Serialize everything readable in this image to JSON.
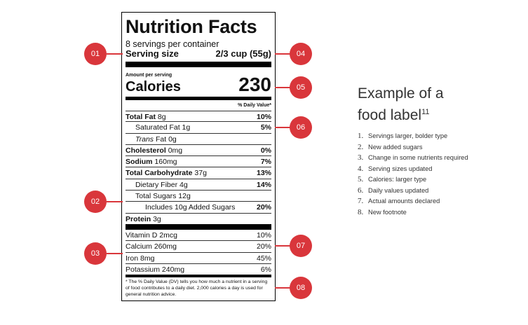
{
  "label": {
    "title": "Nutrition Facts",
    "servings": "8 servings per container",
    "serving_size_label": "Serving size",
    "serving_size_value": "2/3 cup (55g)",
    "amount_per_serving": "Amount per serving",
    "calories_label": "Calories",
    "calories_value": "230",
    "dv_header": "% Daily Value*",
    "nutrients": [
      {
        "name": "Total Fat",
        "amount": "8g",
        "pct": "10%"
      },
      {
        "name": "Saturated Fat",
        "amount": "1g",
        "pct": "5%"
      },
      {
        "name": "Trans",
        "amount": "Fat 0g",
        "pct": ""
      },
      {
        "name": "Cholesterol",
        "amount": "0mg",
        "pct": "0%"
      },
      {
        "name": "Sodium",
        "amount": "160mg",
        "pct": "7%"
      },
      {
        "name": "Total Carbohydrate",
        "amount": "37g",
        "pct": "13%"
      },
      {
        "name": "Dietary Fiber",
        "amount": "4g",
        "pct": "14%"
      },
      {
        "name": "Total Sugars",
        "amount": "12g",
        "pct": ""
      },
      {
        "name": "Includes 10g Added Sugars",
        "amount": "",
        "pct": "20%"
      },
      {
        "name": "Protein",
        "amount": "3g",
        "pct": ""
      }
    ],
    "vitamins": [
      {
        "name": "Vitamin D 2mcg",
        "pct": "10%"
      },
      {
        "name": "Calcium 260mg",
        "pct": "20%"
      },
      {
        "name": "Iron 8mg",
        "pct": "45%"
      },
      {
        "name": "Potassium 240mg",
        "pct": "6%"
      }
    ],
    "footnote": "* The % Daily Value (DV) tells you how much a nutrient in a serving of food contributes to a daily diet. 2,000 calories a day is used for general nutrition advice."
  },
  "markers": [
    "01",
    "02",
    "03",
    "04",
    "05",
    "06",
    "07",
    "08"
  ],
  "legend": {
    "title_line1": "Example of a",
    "title_line2": "food label",
    "title_sup": "11",
    "items": [
      {
        "num": "1.",
        "text": "Servings larger, bolder type"
      },
      {
        "num": "2.",
        "text": "New added sugars"
      },
      {
        "num": "3.",
        "text": "Change in some nutrients required"
      },
      {
        "num": "4.",
        "text": "Serving sizes updated"
      },
      {
        "num": "5.",
        "text": "Calories: larger type"
      },
      {
        "num": "6.",
        "text": "Daily values updated"
      },
      {
        "num": "7.",
        "text": "Actual amounts declared"
      },
      {
        "num": "8.",
        "text": "New footnote"
      }
    ]
  },
  "colors": {
    "marker": "#d9363b",
    "text": "#333333"
  }
}
